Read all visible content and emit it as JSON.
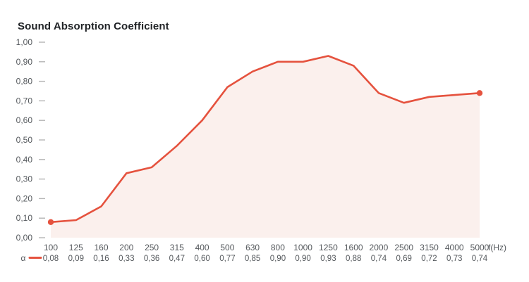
{
  "title": "Sound Absorption Coefficient",
  "colors": {
    "line": "#E5523E",
    "fill": "#FBF0ED",
    "title_text": "#212427",
    "axis_text": "#54585C",
    "tick": "#B5B5B5"
  },
  "chart_data": {
    "type": "area",
    "title": "Sound Absorption Coefficient",
    "categories": [
      "100",
      "125",
      "160",
      "200",
      "250",
      "315",
      "400",
      "500",
      "630",
      "800",
      "1000",
      "1250",
      "1600",
      "2000",
      "2500",
      "3150",
      "4000",
      "5000"
    ],
    "series": [
      {
        "name": "α",
        "values": [
          0.08,
          0.09,
          0.16,
          0.33,
          0.36,
          0.47,
          0.6,
          0.77,
          0.85,
          0.9,
          0.9,
          0.93,
          0.88,
          0.74,
          0.69,
          0.72,
          0.73,
          0.74
        ]
      }
    ],
    "value_labels": [
      "0,08",
      "0,09",
      "0,16",
      "0,33",
      "0,36",
      "0,47",
      "0,60",
      "0,77",
      "0,85",
      "0,90",
      "0,90",
      "0,93",
      "0,88",
      "0,74",
      "0,69",
      "0,72",
      "0,73",
      "0,74"
    ],
    "xlabel": "f(Hz)",
    "ylabel": "",
    "ylim": [
      0,
      1
    ],
    "ytick_values": [
      0,
      0.1,
      0.2,
      0.3,
      0.4,
      0.5,
      0.6,
      0.7,
      0.8,
      0.9,
      1.0
    ],
    "ytick_labels": [
      "0,00",
      "0,10",
      "0,20",
      "0,30",
      "0,40",
      "0,50",
      "0,60",
      "0,70",
      "0,80",
      "0,90",
      "1,00"
    ],
    "grid": false,
    "legend_position": "bottom-left",
    "markers": "endpoints-only"
  }
}
